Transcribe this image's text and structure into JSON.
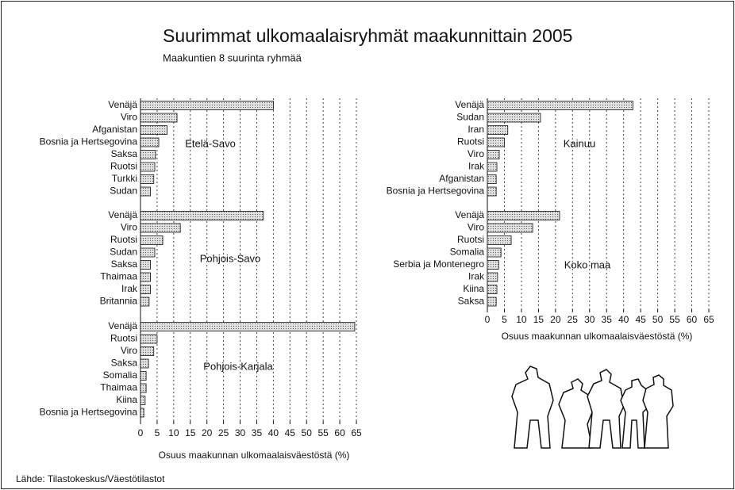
{
  "title": "Suurimmat ulkomaalaisryhmät maakunnittain 2005",
  "subtitle": "Maakuntien 8 suurinta ryhmää",
  "source": "Lähde: Tilastokeskus/Väestötilastot",
  "chart_data": [
    {
      "type": "bar",
      "orientation": "horizontal",
      "color": "#c4c4c4",
      "grid": true,
      "xlim": [
        0,
        65
      ],
      "xticks": [
        0,
        5,
        10,
        15,
        20,
        25,
        30,
        35,
        40,
        45,
        50,
        55,
        60,
        65
      ],
      "xlabel": "Osuus maakunnan ulkomaalaisväestöstä (%)",
      "panels": [
        {
          "name": "Etelä-Savo",
          "categories": [
            "Venäjä",
            "Viro",
            "Afganistan",
            "Bosnia ja Hertsegovina",
            "Saksa",
            "Ruotsi",
            "Turkki",
            "Sudan"
          ],
          "values": [
            40,
            11,
            8,
            5.5,
            4.5,
            4.3,
            4,
            3
          ]
        },
        {
          "name": "Pohjois-Savo",
          "categories": [
            "Venäjä",
            "Viro",
            "Ruotsi",
            "Sudan",
            "Saksa",
            "Thaimaa",
            "Irak",
            "Britannia"
          ],
          "values": [
            37,
            12,
            6.7,
            4.3,
            3,
            3,
            3,
            2.6
          ]
        },
        {
          "name": "Pohjois-Karjala",
          "categories": [
            "Venäjä",
            "Ruotsi",
            "Viro",
            "Saksa",
            "Somalia",
            "Thaimaa",
            "Kiina",
            "Bosnia ja Hertsegovina"
          ],
          "values": [
            64.5,
            5,
            4,
            2.4,
            1.7,
            1.7,
            1.4,
            1
          ]
        }
      ]
    },
    {
      "type": "bar",
      "orientation": "horizontal",
      "color": "#c4c4c4",
      "grid": true,
      "xlim": [
        0,
        65
      ],
      "xticks": [
        0,
        5,
        10,
        15,
        20,
        25,
        30,
        35,
        40,
        45,
        50,
        55,
        60,
        65
      ],
      "xlabel": "Osuus maakunnan ulkomaalaisväestöstä (%)",
      "panels": [
        {
          "name": "Kainuu",
          "categories": [
            "Venäjä",
            "Sudan",
            "Iran",
            "Ruotsi",
            "Viro",
            "Irak",
            "Afganistan",
            "Bosnia ja Hertsegovina"
          ],
          "values": [
            42.7,
            15.6,
            6,
            5,
            3.5,
            2.8,
            2.6,
            2.6
          ]
        },
        {
          "name": "Koko maa",
          "categories": [
            "Venäjä",
            "Viro",
            "Ruotsi",
            "Somalia",
            "Serbia ja Montenegro",
            "Irak",
            "Kiina",
            "Saksa"
          ],
          "values": [
            21.2,
            13.3,
            7,
            4,
            3.3,
            3,
            2.8,
            2.6
          ]
        }
      ]
    }
  ]
}
